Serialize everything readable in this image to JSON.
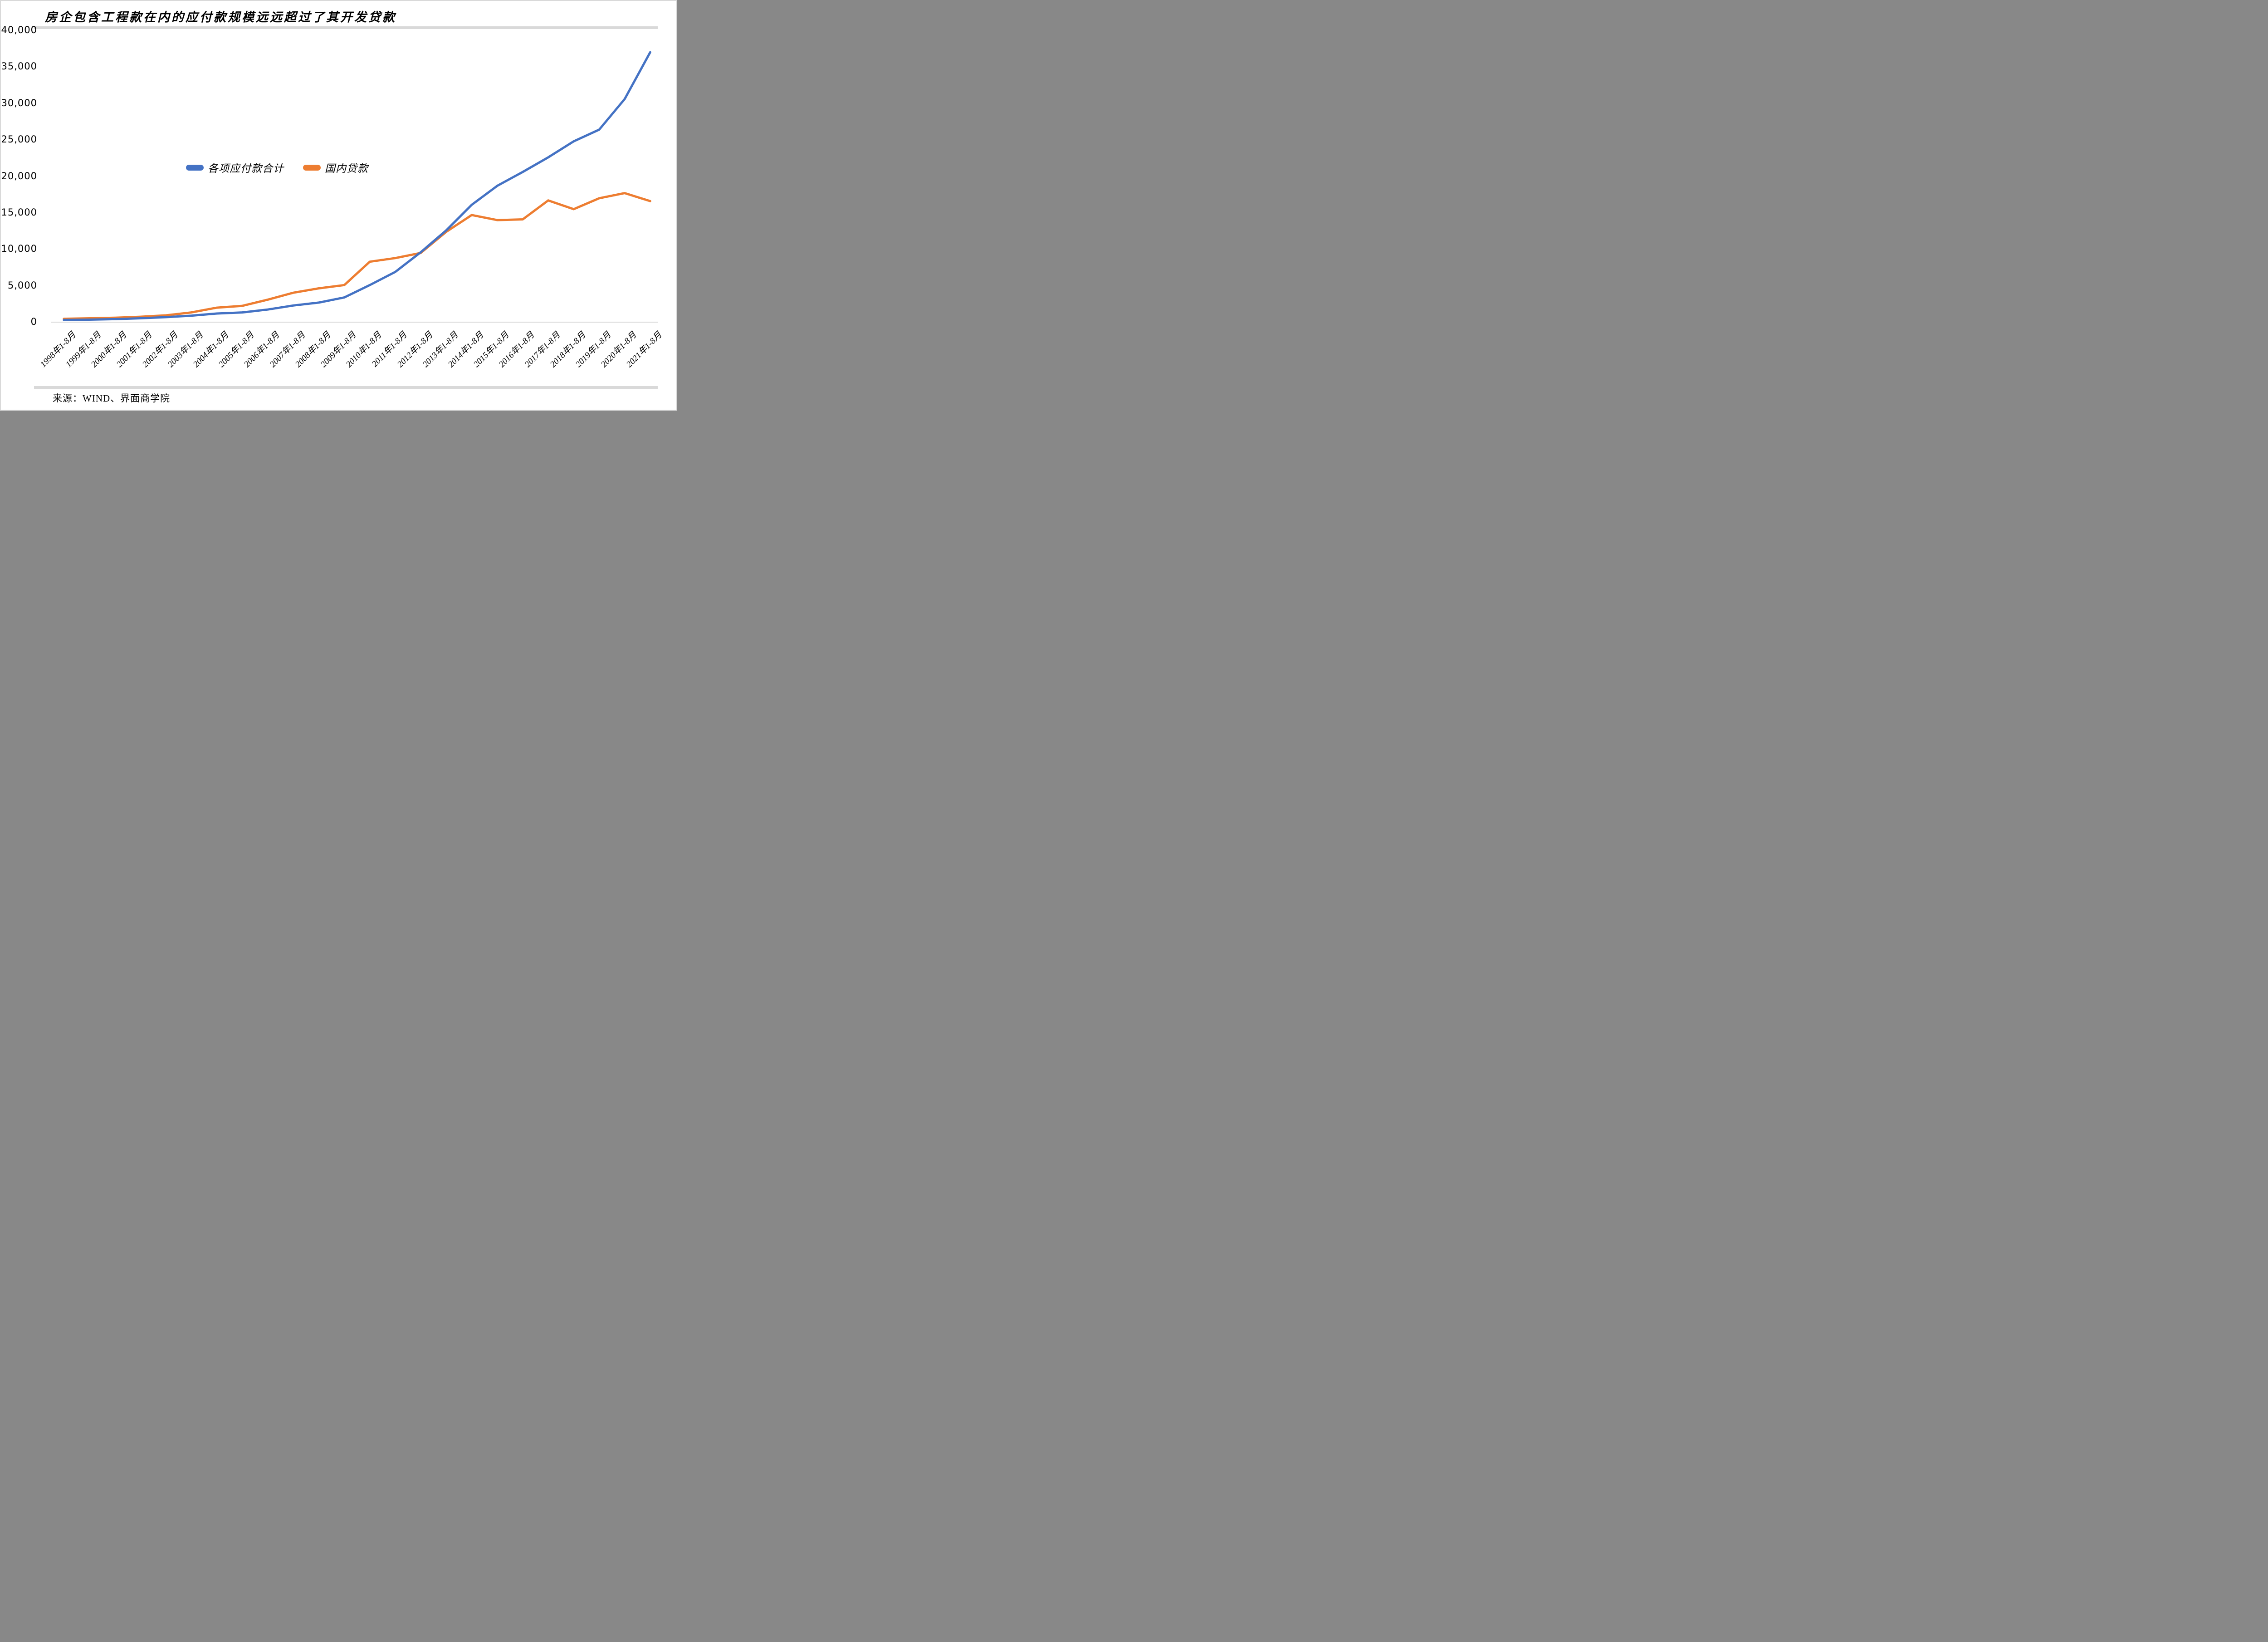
{
  "title": "房企包含工程款在内的应付款规模远远超过了其开发贷款",
  "footer": {
    "source": "来源：WIND、界面商学院"
  },
  "legend": {
    "items": [
      {
        "label": "各项应付款合计",
        "color": "#4472C4"
      },
      {
        "label": "国内贷款",
        "color": "#ED7D31"
      }
    ]
  },
  "colors": {
    "series_payables": "#4472C4",
    "series_loans": "#ED7D31",
    "border_bars": "#D9D9D9",
    "axis_line": "#D9D9D9",
    "text": "#000000"
  },
  "chart_data": {
    "type": "line",
    "title": "房企包含工程款在内的应付款规模远远超过了其开发贷款",
    "xlabel": "",
    "ylabel": "",
    "ylim": [
      0,
      40000
    ],
    "ytick_interval": 5000,
    "ytick_labels": [
      "0",
      "5,000",
      "10,000",
      "15,000",
      "20,000",
      "25,000",
      "30,000",
      "35,000",
      "40,000"
    ],
    "grid": "none",
    "legend_position": "inside-left-center",
    "categories": [
      "1998年1-8月",
      "1999年1-8月",
      "2000年1-8月",
      "2001年1-8月",
      "2002年1-8月",
      "2003年1-8月",
      "2004年1-8月",
      "2005年1-8月",
      "2006年1-8月",
      "2007年1-8月",
      "2008年1-8月",
      "2009年1-8月",
      "2010年1-8月",
      "2011年1-8月",
      "2012年1-8月",
      "2013年1-8月",
      "2014年1-8月",
      "2015年1-8月",
      "2016年1-8月",
      "2017年1-8月",
      "2018年1-8月",
      "2019年1-8月",
      "2020年1-8月",
      "2021年1-8月"
    ],
    "series": [
      {
        "name": "各项应付款合计",
        "color": "#4472C4",
        "values": [
          320,
          360,
          430,
          550,
          700,
          900,
          1200,
          1350,
          1750,
          2300,
          2700,
          3400,
          5100,
          6900,
          9600,
          12600,
          16100,
          18700,
          20600,
          22600,
          24800,
          26400,
          30600,
          37000
        ]
      },
      {
        "name": "国内贷款",
        "color": "#ED7D31",
        "values": [
          480,
          550,
          620,
          760,
          950,
          1350,
          2000,
          2250,
          3100,
          4050,
          4650,
          5100,
          8300,
          8800,
          9500,
          12400,
          14700,
          14000,
          14100,
          16700,
          15500,
          17000,
          17700,
          16600
        ]
      }
    ]
  }
}
